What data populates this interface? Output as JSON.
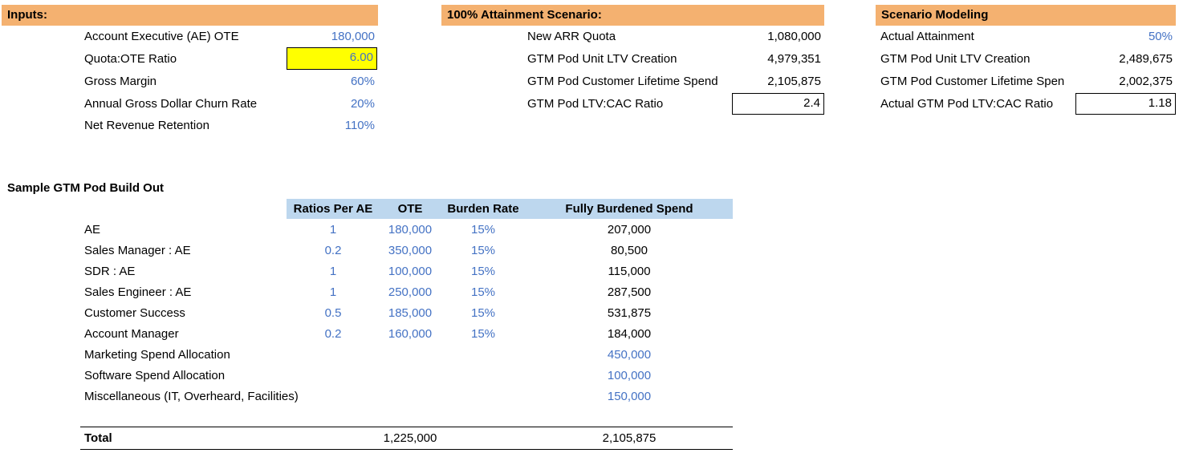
{
  "inputs": {
    "header": "Inputs:",
    "rows": [
      {
        "label": "Account Executive (AE) OTE",
        "value": "180,000"
      },
      {
        "label": "Quota:OTE Ratio",
        "value": "6.00"
      },
      {
        "label": "Gross Margin",
        "value": "60%"
      },
      {
        "label": "Annual Gross Dollar Churn Rate",
        "value": "20%"
      },
      {
        "label": "Net Revenue Retention",
        "value": "110%"
      }
    ]
  },
  "attainment": {
    "header": "100% Attainment Scenario:",
    "rows": [
      {
        "label": "New ARR Quota",
        "value": "1,080,000"
      },
      {
        "label": "GTM Pod Unit LTV Creation",
        "value": "4,979,351"
      },
      {
        "label": "GTM Pod Customer Lifetime Spend",
        "value": "2,105,875"
      },
      {
        "label": "GTM Pod LTV:CAC Ratio",
        "value": "2.4"
      }
    ]
  },
  "modeling": {
    "header": "Scenario Modeling",
    "rows": [
      {
        "label": "Actual Attainment",
        "value": "50%"
      },
      {
        "label": "GTM Pod Unit LTV Creation",
        "value": "2,489,675"
      },
      {
        "label": "GTM Pod Customer Lifetime Spen",
        "value": "2,002,375"
      },
      {
        "label": "Actual GTM Pod LTV:CAC Ratio",
        "value": "1.18"
      }
    ]
  },
  "pod": {
    "title": "Sample GTM Pod Build Out",
    "columns": {
      "ratio": "Ratios Per AE",
      "ote": "OTE",
      "burden": "Burden Rate",
      "spend": "Fully Burdened Spend"
    },
    "rows": [
      {
        "label": "AE",
        "ratio": "1",
        "ote": "180,000",
        "burden": "15%",
        "spend": "207,000"
      },
      {
        "label": "Sales Manager : AE",
        "ratio": "0.2",
        "ote": "350,000",
        "burden": "15%",
        "spend": "80,500"
      },
      {
        "label": "SDR : AE",
        "ratio": "1",
        "ote": "100,000",
        "burden": "15%",
        "spend": "115,000"
      },
      {
        "label": "Sales Engineer : AE",
        "ratio": "1",
        "ote": "250,000",
        "burden": "15%",
        "spend": "287,500"
      },
      {
        "label": "Customer Success",
        "ratio": "0.5",
        "ote": "185,000",
        "burden": "15%",
        "spend": "531,875"
      },
      {
        "label": "Account Manager",
        "ratio": "0.2",
        "ote": "160,000",
        "burden": "15%",
        "spend": "184,000"
      },
      {
        "label": "Marketing Spend Allocation",
        "ratio": "",
        "ote": "",
        "burden": "",
        "spend": "450,000"
      },
      {
        "label": "Software Spend Allocation",
        "ratio": "",
        "ote": "",
        "burden": "",
        "spend": "100,000"
      },
      {
        "label": "Miscellaneous (IT, Overheard, Facilities)",
        "ratio": "",
        "ote": "",
        "burden": "",
        "spend": "150,000"
      }
    ],
    "total": {
      "label": "Total",
      "ote": "1,225,000",
      "spend": "2,105,875"
    }
  }
}
